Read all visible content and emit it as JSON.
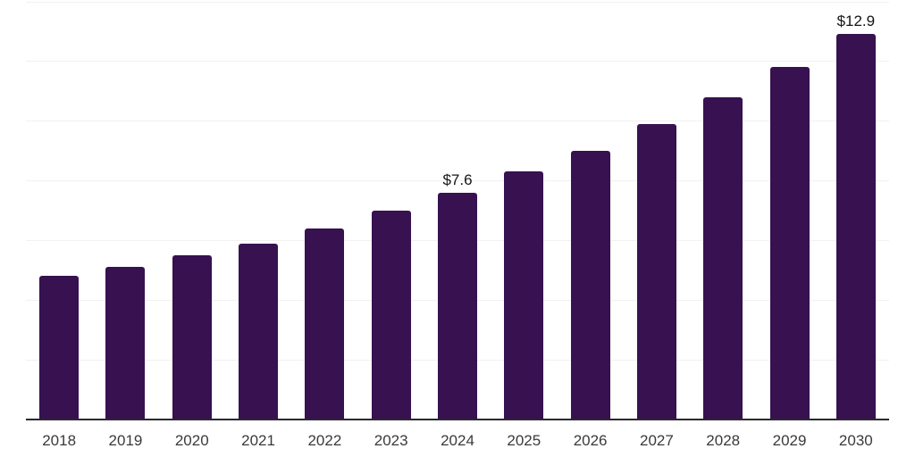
{
  "chart_data": {
    "type": "bar",
    "title": "",
    "xlabel": "",
    "ylabel": "",
    "categories": [
      "2018",
      "2019",
      "2020",
      "2021",
      "2022",
      "2023",
      "2024",
      "2025",
      "2026",
      "2027",
      "2028",
      "2029",
      "2030"
    ],
    "values": [
      4.8,
      5.1,
      5.5,
      5.9,
      6.4,
      7.0,
      7.6,
      8.3,
      9.0,
      9.9,
      10.8,
      11.8,
      12.9
    ],
    "data_labels": {
      "2024": "$7.6",
      "2030": "$12.9"
    },
    "ylim": [
      0,
      14
    ],
    "gridline_step": 2,
    "grid": true,
    "legend": false,
    "y_tick_labels_visible": false,
    "colors": {
      "bar": "#371150",
      "gridline": "#f1f1f2",
      "axis_line": "#2a2a2e",
      "tick_label": "#3a3a3a",
      "value_label": "#141414",
      "background": "#ffffff"
    }
  }
}
